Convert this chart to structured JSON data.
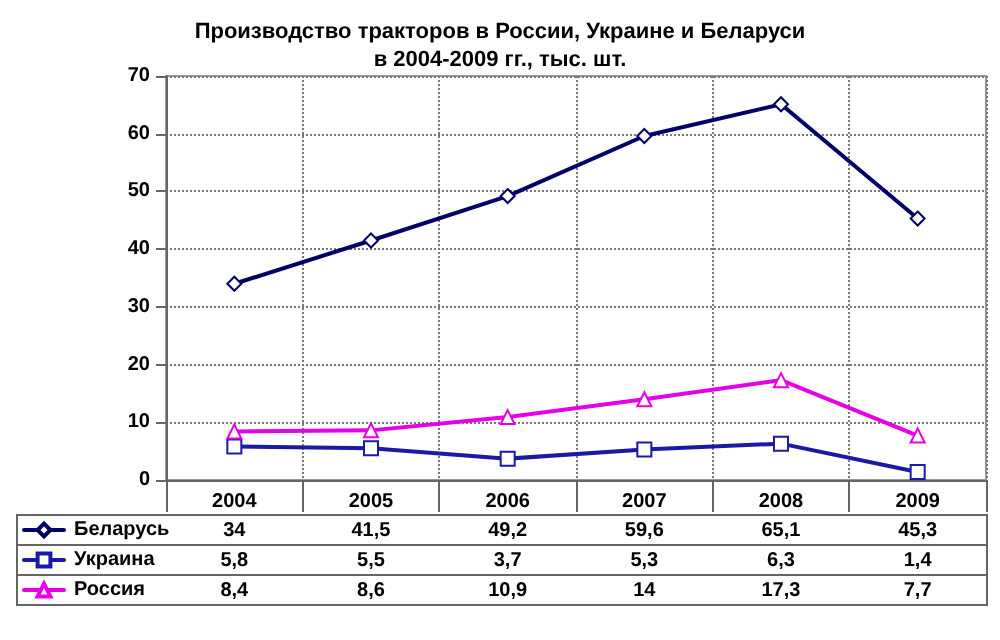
{
  "chart_data": {
    "type": "line",
    "title": "Производство тракторов в России, Украине и Беларуси\nв 2004-2009 гг., тыс. шт.",
    "categories": [
      "2004",
      "2005",
      "2006",
      "2007",
      "2008",
      "2009"
    ],
    "series": [
      {
        "name": "Беларусь",
        "color": "#000066",
        "marker": "diamond",
        "values": [
          34,
          41.5,
          49.2,
          59.6,
          65.1,
          45.3
        ],
        "value_labels": [
          "34",
          "41,5",
          "49,2",
          "59,6",
          "65,1",
          "45,3"
        ]
      },
      {
        "name": "Украина",
        "color": "#1a1aa6",
        "marker": "square",
        "values": [
          5.8,
          5.5,
          3.7,
          5.3,
          6.3,
          1.4
        ],
        "value_labels": [
          "5,8",
          "5,5",
          "3,7",
          "5,3",
          "6,3",
          "1,4"
        ]
      },
      {
        "name": "Россия",
        "color": "#e600e6",
        "marker": "triangle",
        "values": [
          8.4,
          8.6,
          10.9,
          14,
          17.3,
          7.7
        ],
        "value_labels": [
          "8,4",
          "8,6",
          "10,9",
          "14",
          "17,3",
          "7,7"
        ]
      }
    ],
    "ylim": [
      0,
      70
    ],
    "yticks": [
      0,
      10,
      20,
      30,
      40,
      50,
      60,
      70
    ],
    "grid": true,
    "legend": "bottom left",
    "line_style": "solid"
  }
}
